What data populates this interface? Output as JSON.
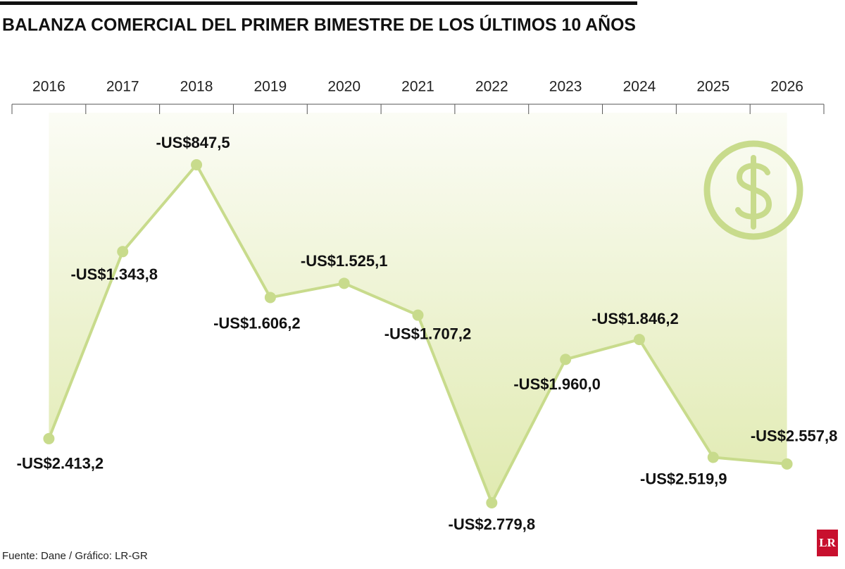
{
  "chart_data": {
    "type": "line",
    "title": "BALANZA COMERCIAL DEL PRIMER BIMESTRE DE LOS ÚLTIMOS 10 AÑOS",
    "categories": [
      "2016",
      "2017",
      "2018",
      "2019",
      "2020",
      "2021",
      "2022",
      "2023",
      "2024",
      "2025",
      "2026"
    ],
    "values": [
      -2413.2,
      -1343.8,
      -847.5,
      -1606.2,
      -1525.1,
      -1707.2,
      -2779.8,
      -1960.0,
      -1846.2,
      -2519.9,
      -2557.8
    ],
    "value_labels": [
      "-US$2.413,2",
      "-US$1.343,8",
      "-US$847,5",
      "-US$1.606,2",
      "-US$1.525,1",
      "-US$1.707,2",
      "-US$2.779,8",
      "-US$1.960,0",
      "-US$1.846,2",
      "-US$2.519,9",
      "-US$2.557,8"
    ],
    "color": "#c8db8c",
    "source": "Fuente: Dane / Gráfico: LR-GR",
    "logo": "LR"
  }
}
